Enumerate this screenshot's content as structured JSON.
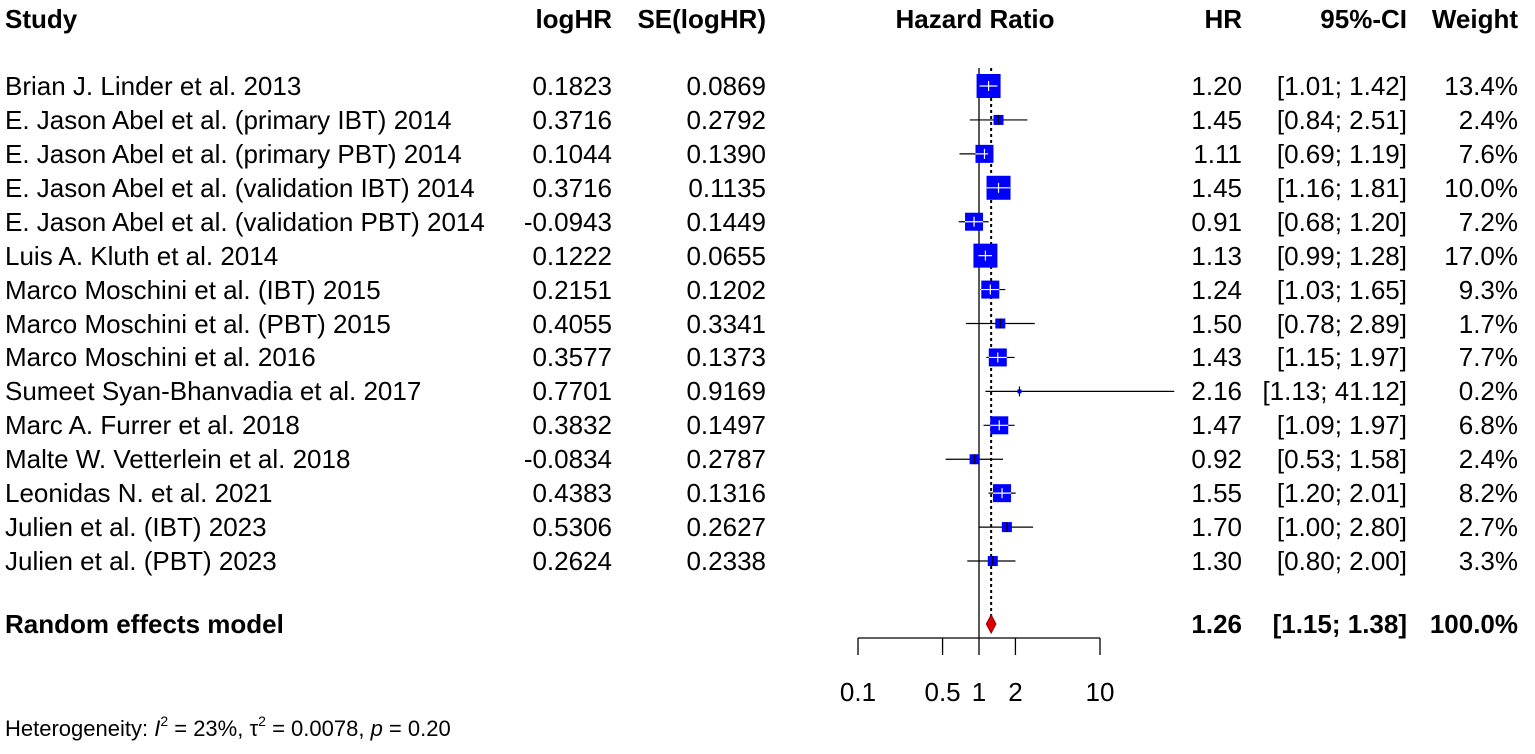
{
  "chart_data": {
    "type": "forest",
    "columns": {
      "study": "Study",
      "loghr": "logHR",
      "se": "SE(logHR)",
      "plot": "Hazard Ratio",
      "hr": "HR",
      "ci": "95%-CI",
      "weight": "Weight"
    },
    "studies": [
      {
        "study": "Brian J. Linder et al. 2013",
        "loghr": "0.1823",
        "se": "0.0869",
        "hr": "1.20",
        "ci": "[1.01; 1.42]",
        "weight": "13.4%",
        "hr_val": 1.2,
        "lo": 1.01,
        "hi": 1.42,
        "w": 13.4,
        "box": "large"
      },
      {
        "study": "E. Jason Abel et al. (primary IBT) 2014",
        "loghr": "0.3716",
        "se": "0.2792",
        "hr": "1.45",
        "ci": "[0.84; 2.51]",
        "weight": "2.4%",
        "hr_val": 1.45,
        "lo": 0.84,
        "hi": 2.51,
        "w": 2.4,
        "box": "small"
      },
      {
        "study": "E. Jason Abel et al. (primary PBT) 2014",
        "loghr": "0.1044",
        "se": "0.1390",
        "hr": "1.11",
        "ci": "[0.69; 1.19]",
        "weight": "7.6%",
        "hr_val": 1.11,
        "lo": 0.69,
        "hi": 1.19,
        "w": 7.6,
        "box": "medium"
      },
      {
        "study": "E. Jason Abel et al. (validation IBT) 2014",
        "loghr": "0.3716",
        "se": "0.1135",
        "hr": "1.45",
        "ci": "[1.16; 1.81]",
        "weight": "10.0%",
        "hr_val": 1.45,
        "lo": 1.16,
        "hi": 1.81,
        "w": 10.0,
        "box": "large"
      },
      {
        "study": "E. Jason Abel et al. (validation PBT) 2014",
        "loghr": "-0.0943",
        "se": "0.1449",
        "hr": "0.91",
        "ci": "[0.68; 1.20]",
        "weight": "7.2%",
        "hr_val": 0.91,
        "lo": 0.68,
        "hi": 1.2,
        "w": 7.2,
        "box": "medium"
      },
      {
        "study": "Luis A. Kluth et al. 2014",
        "loghr": "0.1222",
        "se": "0.0655",
        "hr": "1.13",
        "ci": "[0.99; 1.28]",
        "weight": "17.0%",
        "hr_val": 1.13,
        "lo": 0.99,
        "hi": 1.28,
        "w": 17.0,
        "box": "large"
      },
      {
        "study": "Marco Moschini et al. (IBT) 2015",
        "loghr": "0.2151",
        "se": "0.1202",
        "hr": "1.24",
        "ci": "[1.03; 1.65]",
        "weight": "9.3%",
        "hr_val": 1.24,
        "lo": 1.03,
        "hi": 1.65,
        "w": 9.3,
        "box": "medium"
      },
      {
        "study": "Marco Moschini et al. (PBT) 2015",
        "loghr": "0.4055",
        "se": "0.3341",
        "hr": "1.50",
        "ci": "[0.78; 2.89]",
        "weight": "1.7%",
        "hr_val": 1.5,
        "lo": 0.78,
        "hi": 2.89,
        "w": 1.7,
        "box": "small"
      },
      {
        "study": "Marco Moschini et al. 2016",
        "loghr": "0.3577",
        "se": "0.1373",
        "hr": "1.43",
        "ci": "[1.15; 1.97]",
        "weight": "7.7%",
        "hr_val": 1.43,
        "lo": 1.15,
        "hi": 1.97,
        "w": 7.7,
        "box": "medium"
      },
      {
        "study": "Sumeet Syan-Bhanvadia et al. 2017",
        "loghr": "0.7701",
        "se": "0.9169",
        "hr": "2.16",
        "ci": "[1.13; 41.12]",
        "weight": "0.2%",
        "hr_val": 2.16,
        "lo": 1.13,
        "hi": 41.12,
        "w": 0.2,
        "box": "tiny"
      },
      {
        "study": "Marc A. Furrer et al. 2018",
        "loghr": "0.3832",
        "se": "0.1497",
        "hr": "1.47",
        "ci": "[1.09; 1.97]",
        "weight": "6.8%",
        "hr_val": 1.47,
        "lo": 1.09,
        "hi": 1.97,
        "w": 6.8,
        "box": "medium"
      },
      {
        "study": "Malte W. Vetterlein et al. 2018",
        "loghr": "-0.0834",
        "se": "0.2787",
        "hr": "0.92",
        "ci": "[0.53; 1.58]",
        "weight": "2.4%",
        "hr_val": 0.92,
        "lo": 0.53,
        "hi": 1.58,
        "w": 2.4,
        "box": "small"
      },
      {
        "study": "Leonidas N.  et al. 2021",
        "loghr": "0.4383",
        "se": "0.1316",
        "hr": "1.55",
        "ci": "[1.20; 2.01]",
        "weight": "8.2%",
        "hr_val": 1.55,
        "lo": 1.2,
        "hi": 2.01,
        "w": 8.2,
        "box": "medium"
      },
      {
        "study": "Julien et al. (IBT) 2023",
        "loghr": "0.5306",
        "se": "0.2627",
        "hr": "1.70",
        "ci": "[1.00; 2.80]",
        "weight": "2.7%",
        "hr_val": 1.7,
        "lo": 1.0,
        "hi": 2.8,
        "w": 2.7,
        "box": "small"
      },
      {
        "study": "Julien et al. (PBT) 2023",
        "loghr": "0.2624",
        "se": "0.2338",
        "hr": "1.30",
        "ci": "[0.80; 2.00]",
        "weight": "3.3%",
        "hr_val": 1.3,
        "lo": 0.8,
        "hi": 2.0,
        "w": 3.3,
        "box": "small"
      }
    ],
    "summary": {
      "label": "Random effects model",
      "hr": "1.26",
      "ci": "[1.15; 1.38]",
      "weight": "100.0%",
      "hr_val": 1.26,
      "lo": 1.15,
      "hi": 1.38
    },
    "x_axis": {
      "scale": "log",
      "range": [
        0.1,
        10
      ],
      "ticks": [
        0.1,
        0.5,
        1,
        2,
        10
      ],
      "tick_labels": [
        "0.1",
        "0.5",
        "1",
        "2",
        "10"
      ],
      "null_line": 1
    },
    "heterogeneity": {
      "prefix": "Heterogeneity: ",
      "i2_symbol": "I",
      "i2_value": " = 23%, ",
      "tau_symbol": "τ",
      "tau_value": " = 0.0078, ",
      "p_symbol": "p",
      "p_value": " = 0.20"
    },
    "colors": {
      "box": "#0000ff",
      "diamond": "#e00000",
      "line": "#000000",
      "crosshair": "#ffffff"
    }
  }
}
